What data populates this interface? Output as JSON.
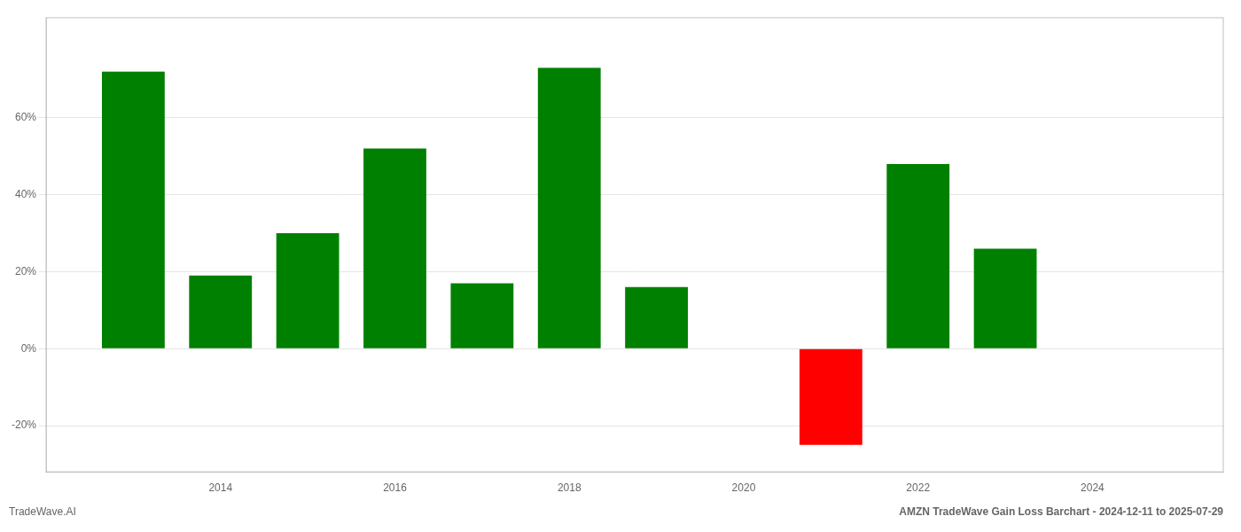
{
  "chart_data": {
    "type": "bar",
    "title": "AMZN TradeWave Gain Loss Barchart - 2024-12-11 to 2025-07-29",
    "annotations": [
      "TradeWave.AI"
    ],
    "x": [
      2013,
      2014,
      2015,
      2016,
      2017,
      2018,
      2019,
      2021,
      2022,
      2023
    ],
    "values": [
      0.72,
      0.19,
      0.3,
      0.52,
      0.17,
      0.73,
      0.16,
      -0.25,
      0.48,
      0.26
    ],
    "colors": [
      "#008000",
      "#008000",
      "#008000",
      "#008000",
      "#008000",
      "#008000",
      "#008000",
      "#ff0000",
      "#008000",
      "#008000"
    ],
    "xlim": [
      2012.0,
      2025.5
    ],
    "xticks": [
      2014,
      2016,
      2018,
      2020,
      2022,
      2024
    ],
    "ylim": [
      -0.32,
      0.86
    ],
    "yticks": [
      {
        "value": -0.2,
        "label": "-20%"
      },
      {
        "value": 0.0,
        "label": "0%"
      },
      {
        "value": 0.2,
        "label": "20%"
      },
      {
        "value": 0.4,
        "label": "40%"
      },
      {
        "value": 0.6,
        "label": "60%"
      }
    ],
    "grid": "y"
  }
}
